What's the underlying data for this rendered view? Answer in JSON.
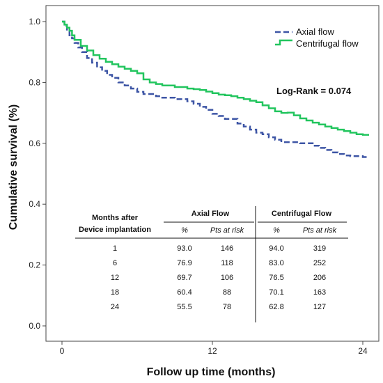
{
  "chart_data": {
    "type": "line",
    "xlabel": "Follow up time (months)",
    "ylabel": "Cumulative survival (%)",
    "xlim": [
      0,
      24.5
    ],
    "ylim": [
      0,
      1.02
    ],
    "x_ticks": [
      0,
      12,
      24
    ],
    "y_ticks": [
      0.0,
      0.2,
      0.4,
      0.6,
      0.8,
      1.0
    ],
    "x_tick_labels": [
      "0",
      "12",
      "24"
    ],
    "y_tick_labels": [
      "0.0",
      "0.2",
      "0.4",
      "0.6",
      "0.8",
      "1.0"
    ],
    "grid": false,
    "legend_position": "top-right",
    "annotation": "Log-Rank = 0.074",
    "series": [
      {
        "name": "Axial flow",
        "color": "#3d55a5",
        "style": "dashed",
        "x": [
          0,
          0.2,
          0.4,
          0.6,
          0.8,
          1.0,
          1.3,
          1.6,
          2.0,
          2.4,
          2.8,
          3.2,
          3.6,
          4.0,
          4.5,
          5.0,
          5.5,
          6.0,
          6.5,
          7.0,
          7.5,
          8.0,
          9.0,
          10.0,
          10.5,
          11.0,
          11.5,
          12.0,
          12.5,
          13.0,
          14.0,
          14.5,
          15.0,
          15.5,
          16.0,
          16.5,
          17.0,
          17.5,
          18.0,
          19.0,
          20.0,
          20.5,
          21.0,
          21.5,
          22.0,
          22.5,
          23.0,
          24.0,
          24.5
        ],
        "y": [
          1.0,
          0.985,
          0.97,
          0.955,
          0.945,
          0.93,
          0.915,
          0.9,
          0.88,
          0.865,
          0.85,
          0.838,
          0.825,
          0.815,
          0.8,
          0.79,
          0.78,
          0.769,
          0.762,
          0.762,
          0.755,
          0.75,
          0.745,
          0.738,
          0.73,
          0.72,
          0.71,
          0.697,
          0.69,
          0.68,
          0.665,
          0.655,
          0.645,
          0.635,
          0.63,
          0.62,
          0.612,
          0.604,
          0.604,
          0.6,
          0.592,
          0.585,
          0.578,
          0.57,
          0.565,
          0.56,
          0.558,
          0.555,
          0.555
        ]
      },
      {
        "name": "Centrifugal flow",
        "color": "#22c55e",
        "style": "solid",
        "x": [
          0,
          0.2,
          0.4,
          0.6,
          0.8,
          1.0,
          1.5,
          2.0,
          2.5,
          3.0,
          3.5,
          4.0,
          4.5,
          5.0,
          5.5,
          6.0,
          6.5,
          7.0,
          7.5,
          8.0,
          9.0,
          10.0,
          10.5,
          11.0,
          11.5,
          12.0,
          12.5,
          13.0,
          13.5,
          14.0,
          14.5,
          15.0,
          15.5,
          16.0,
          16.5,
          17.0,
          17.5,
          18.0,
          18.5,
          19.0,
          19.5,
          20.0,
          20.5,
          21.0,
          21.5,
          22.0,
          22.5,
          23.0,
          23.5,
          24.0,
          24.5
        ],
        "y": [
          1.0,
          0.99,
          0.98,
          0.97,
          0.955,
          0.94,
          0.92,
          0.905,
          0.89,
          0.878,
          0.868,
          0.86,
          0.852,
          0.845,
          0.838,
          0.83,
          0.81,
          0.8,
          0.795,
          0.79,
          0.785,
          0.78,
          0.778,
          0.775,
          0.77,
          0.765,
          0.76,
          0.758,
          0.755,
          0.75,
          0.745,
          0.74,
          0.735,
          0.725,
          0.715,
          0.705,
          0.7,
          0.701,
          0.692,
          0.682,
          0.675,
          0.668,
          0.662,
          0.655,
          0.65,
          0.645,
          0.64,
          0.635,
          0.63,
          0.628,
          0.628
        ]
      }
    ],
    "table": {
      "header_months": [
        "Months after",
        "Device implantation"
      ],
      "header_axial": "Axial Flow",
      "header_centrifugal": "Centrifugal Flow",
      "subheader_pct": "%",
      "subheader_risk": "Pts at risk",
      "rows": [
        {
          "month": "1",
          "axial_pct": "93.0",
          "axial_risk": "146",
          "cent_pct": "94.0",
          "cent_risk": "319"
        },
        {
          "month": "6",
          "axial_pct": "76.9",
          "axial_risk": "118",
          "cent_pct": "83.0",
          "cent_risk": "252"
        },
        {
          "month": "12",
          "axial_pct": "69.7",
          "axial_risk": "106",
          "cent_pct": "76.5",
          "cent_risk": "206"
        },
        {
          "month": "18",
          "axial_pct": "60.4",
          "axial_risk": "88",
          "cent_pct": "70.1",
          "cent_risk": "163"
        },
        {
          "month": "24",
          "axial_pct": "55.5",
          "axial_risk": "78",
          "cent_pct": "62.8",
          "cent_risk": "127"
        }
      ]
    }
  }
}
